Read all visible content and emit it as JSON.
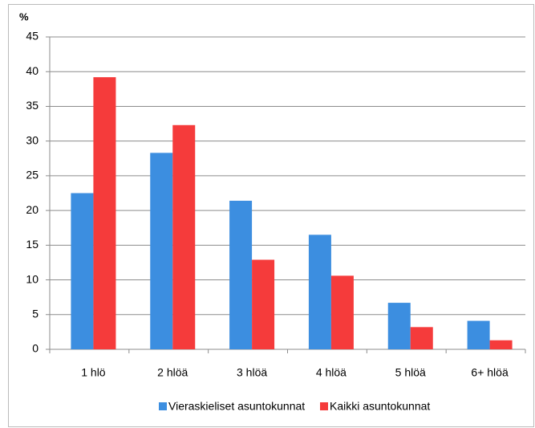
{
  "chart_data": {
    "type": "bar",
    "y_label": "%",
    "categories": [
      "1 hlö",
      "2 hlöä",
      "3 hlöä",
      "4 hlöä",
      "5 hlöä",
      "6+ hlöä"
    ],
    "series": [
      {
        "name": "Vieraskieliset asuntokunnat",
        "color": "#3c8ee0",
        "values": [
          22.5,
          28.3,
          21.4,
          16.5,
          6.7,
          4.1
        ]
      },
      {
        "name": "Kaikki asuntokunnat",
        "color": "#f53b3b",
        "values": [
          39.2,
          32.3,
          12.9,
          10.6,
          3.2,
          1.3
        ]
      }
    ],
    "ylim": [
      0,
      45
    ],
    "yticks": [
      0,
      5,
      10,
      15,
      20,
      25,
      30,
      35,
      40,
      45
    ],
    "grid": true,
    "legend": "bottom"
  }
}
